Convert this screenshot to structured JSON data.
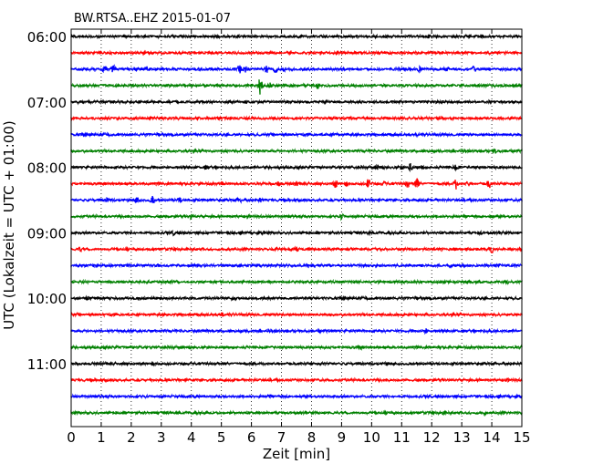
{
  "chart_data": {
    "type": "line",
    "title": "BW.RTSA..EHZ 2015-01-07",
    "xlabel": "Zeit  [min]",
    "ylabel": "UTC (Lokalzeit = UTC + 01:00)",
    "xlim": [
      0,
      15
    ],
    "x_ticks": [
      "0",
      "1",
      "2",
      "3",
      "4",
      "5",
      "6",
      "7",
      "8",
      "9",
      "10",
      "11",
      "12",
      "13",
      "14",
      "15"
    ],
    "y_ticks": [
      "06:00",
      "07:00",
      "08:00",
      "09:00",
      "10:00",
      "11:00"
    ],
    "grid": "vertical dotted at each minute",
    "trace_colors": [
      "#000000",
      "#ff0000",
      "#0000ff",
      "#008000"
    ],
    "traces": [
      {
        "start": "06:00",
        "color": "#000000",
        "events": [
          [
            11.9,
            0.2
          ]
        ]
      },
      {
        "start": "06:15",
        "color": "#ff0000",
        "events": []
      },
      {
        "start": "06:30",
        "color": "#0000ff",
        "events": [
          [
            1.1,
            0.4
          ],
          [
            1.4,
            0.6
          ],
          [
            2.5,
            0.4
          ],
          [
            5.6,
            0.8
          ],
          [
            5.8,
            0.5
          ],
          [
            6.5,
            0.7
          ],
          [
            6.8,
            0.5
          ],
          [
            7.1,
            0.3
          ],
          [
            11.6,
            0.4
          ],
          [
            12.5,
            0.5
          ],
          [
            13.4,
            0.5
          ]
        ]
      },
      {
        "start": "06:45",
        "color": "#008000",
        "events": [
          [
            6.3,
            1.6
          ],
          [
            6.6,
            0.4
          ],
          [
            8.2,
            0.5
          ]
        ]
      },
      {
        "start": "07:00",
        "color": "#000000",
        "events": [
          [
            0.2,
            0.3
          ],
          [
            5.8,
            0.2
          ]
        ]
      },
      {
        "start": "07:15",
        "color": "#ff0000",
        "events": []
      },
      {
        "start": "07:30",
        "color": "#0000ff",
        "events": [
          [
            8.8,
            0.2
          ]
        ]
      },
      {
        "start": "07:45",
        "color": "#008000",
        "events": [
          [
            14.1,
            0.3
          ]
        ]
      },
      {
        "start": "08:00",
        "color": "#000000",
        "events": [
          [
            2.2,
            0.2
          ],
          [
            4.5,
            0.2
          ],
          [
            10.2,
            0.3
          ],
          [
            11.0,
            0.4
          ],
          [
            11.3,
            0.6
          ],
          [
            11.7,
            0.3
          ],
          [
            12.8,
            0.3
          ],
          [
            13.3,
            0.2
          ]
        ]
      },
      {
        "start": "08:15",
        "color": "#ff0000",
        "events": [
          [
            5.0,
            0.2
          ],
          [
            6.9,
            0.5
          ],
          [
            7.5,
            0.3
          ],
          [
            8.8,
            0.8
          ],
          [
            9.2,
            0.4
          ],
          [
            9.9,
            0.9
          ],
          [
            10.4,
            0.4
          ],
          [
            11.2,
            0.6
          ],
          [
            11.5,
            0.9
          ],
          [
            12.8,
            1.0
          ],
          [
            13.2,
            0.3
          ],
          [
            13.9,
            0.8
          ]
        ]
      },
      {
        "start": "08:30",
        "color": "#0000ff",
        "events": [
          [
            1.2,
            0.4
          ],
          [
            2.2,
            0.6
          ],
          [
            2.7,
            0.8
          ],
          [
            3.6,
            0.4
          ],
          [
            5.6,
            0.3
          ],
          [
            6.3,
            0.3
          ]
        ]
      },
      {
        "start": "08:45",
        "color": "#008000",
        "events": [
          [
            4.0,
            0.3
          ],
          [
            9.0,
            0.4
          ],
          [
            14.0,
            0.2
          ]
        ]
      },
      {
        "start": "09:00",
        "color": "#000000",
        "events": [
          [
            2.0,
            0.2
          ],
          [
            3.4,
            0.3
          ],
          [
            6.4,
            0.2
          ],
          [
            9.9,
            0.2
          ],
          [
            13.6,
            0.3
          ]
        ]
      },
      {
        "start": "09:15",
        "color": "#ff0000",
        "events": [
          [
            0.3,
            0.3
          ],
          [
            7.5,
            0.3
          ],
          [
            14.0,
            0.5
          ]
        ]
      },
      {
        "start": "09:30",
        "color": "#0000ff",
        "events": [
          [
            2.9,
            0.3
          ],
          [
            12.6,
            0.4
          ],
          [
            14.2,
            0.3
          ]
        ]
      },
      {
        "start": "09:45",
        "color": "#008000",
        "events": [
          [
            13.5,
            0.3
          ],
          [
            14.5,
            0.2
          ]
        ]
      },
      {
        "start": "10:00",
        "color": "#000000",
        "events": [
          [
            0.5,
            0.2
          ],
          [
            5.4,
            0.2
          ]
        ]
      },
      {
        "start": "10:15",
        "color": "#ff0000",
        "events": [
          [
            5.0,
            0.3
          ]
        ]
      },
      {
        "start": "10:30",
        "color": "#0000ff",
        "events": [
          [
            11.8,
            0.3
          ]
        ]
      },
      {
        "start": "10:45",
        "color": "#008000",
        "events": [
          [
            2.0,
            0.2
          ],
          [
            9.6,
            0.2
          ]
        ]
      },
      {
        "start": "11:00",
        "color": "#000000",
        "events": [
          [
            10.5,
            0.2
          ]
        ]
      },
      {
        "start": "11:15",
        "color": "#ff0000",
        "events": [
          [
            14.5,
            0.2
          ]
        ]
      },
      {
        "start": "11:30",
        "color": "#0000ff",
        "events": [
          [
            6.6,
            0.2
          ]
        ]
      },
      {
        "start": "11:45",
        "color": "#008000",
        "events": [
          [
            12.4,
            0.2
          ],
          [
            13.8,
            0.2
          ]
        ]
      }
    ]
  }
}
